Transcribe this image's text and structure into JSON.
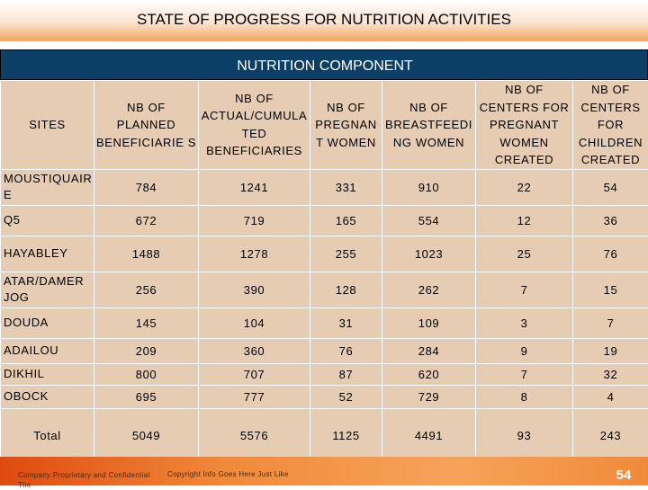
{
  "header": {
    "title": "STATE OF PROGRESS FOR NUTRITION ACTIVITIES"
  },
  "component": {
    "label": "NUTRITION COMPONENT"
  },
  "table": {
    "columns": [
      "SITES",
      "NB OF PLANNED BENEFICIARIE S",
      "NB OF ACTUAL/CUMULA TED BENEFICIARIES",
      "NB OF PREGNAN T WOMEN",
      "NB OF BREASTFEEDI NG WOMEN",
      "NB OF CENTERS FOR PREGNANT WOMEN CREATED",
      "NB OF CENTERS FOR CHILDREN CREATED"
    ],
    "rows": [
      {
        "site": "MOUSTIQUAIR E",
        "values": [
          "784",
          "1241",
          "331",
          "910",
          "22",
          "54"
        ]
      },
      {
        "site": "Q5",
        "values": [
          "672",
          "719",
          "165",
          "554",
          "12",
          "36"
        ]
      },
      {
        "site": "HAYABLEY",
        "values": [
          "1488",
          "1278",
          "255",
          "1023",
          "25",
          "76"
        ]
      },
      {
        "site": "ATAR/DAMER JOG",
        "values": [
          "256",
          "390",
          "128",
          "262",
          "7",
          "15"
        ]
      },
      {
        "site": "DOUDA",
        "values": [
          "145",
          "104",
          "31",
          "109",
          "3",
          "7"
        ]
      },
      {
        "site": "ADAILOU",
        "values": [
          "209",
          "360",
          "76",
          "284",
          "9",
          "19"
        ]
      },
      {
        "site": "DIKHIL",
        "values": [
          "800",
          "707",
          "87",
          "620",
          "7",
          "32"
        ]
      },
      {
        "site": "OBOCK",
        "values": [
          "695",
          "777",
          "52",
          "729",
          "8",
          "4"
        ]
      }
    ],
    "total": {
      "label": "Total",
      "values": [
        "5049",
        "5576",
        "1125",
        "4491",
        "93",
        "243"
      ]
    }
  },
  "footer": {
    "left": "Company Proprietary and Confidential The",
    "center": "Copyright Info Goes Here Just Like",
    "page": "54"
  }
}
